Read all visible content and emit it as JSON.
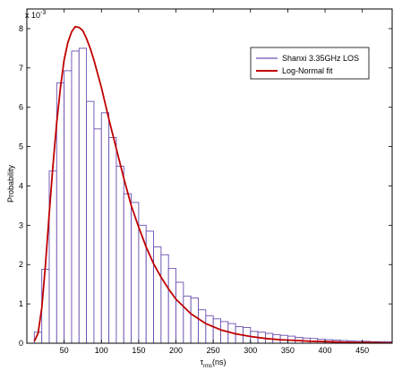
{
  "chart_data": {
    "type": "bar",
    "title": "",
    "xlabel": "τ_rms(ns)",
    "xlabel_main": "τ",
    "xlabel_sub": "rms",
    "xlabel_suffix": "(ns)",
    "ylabel": "Probability",
    "y_exponent_label": "x 10",
    "y_exponent_power": "-3",
    "xlim": [
      0,
      490
    ],
    "ylim": [
      0,
      8.5
    ],
    "x_ticks": [
      50,
      100,
      150,
      200,
      250,
      300,
      350,
      400,
      450
    ],
    "y_ticks": [
      0,
      1,
      2,
      3,
      4,
      5,
      6,
      7,
      8
    ],
    "grid": false,
    "legend_position": "top-right",
    "bar_width": 10,
    "series": [
      {
        "name": "Shanxi 3.35GHz LOS",
        "type": "histogram",
        "color": "#6a4fb0",
        "bin_left_edges": [
          10,
          20,
          30,
          40,
          50,
          60,
          70,
          80,
          90,
          100,
          110,
          120,
          130,
          140,
          150,
          160,
          170,
          180,
          190,
          200,
          210,
          220,
          230,
          240,
          250,
          260,
          270,
          280,
          290,
          300,
          310,
          320,
          330,
          340,
          350,
          360,
          370,
          380,
          390,
          400,
          410,
          420,
          430,
          440,
          450,
          460,
          470,
          480
        ],
        "values": [
          0.28,
          1.88,
          4.38,
          6.62,
          6.93,
          7.43,
          7.5,
          6.15,
          5.45,
          5.86,
          5.23,
          4.5,
          3.8,
          3.58,
          3.0,
          2.85,
          2.45,
          2.25,
          1.9,
          1.55,
          1.2,
          1.15,
          0.85,
          0.7,
          0.62,
          0.55,
          0.5,
          0.42,
          0.4,
          0.3,
          0.28,
          0.25,
          0.22,
          0.2,
          0.18,
          0.15,
          0.13,
          0.12,
          0.1,
          0.09,
          0.08,
          0.07,
          0.06,
          0.05,
          0.05,
          0.04,
          0.04,
          0.04
        ]
      },
      {
        "name": "Log-Normal fit",
        "type": "line",
        "color": "#c00000",
        "x": [
          10,
          15,
          20,
          25,
          30,
          35,
          40,
          45,
          50,
          55,
          60,
          65,
          70,
          75,
          80,
          85,
          90,
          100,
          110,
          120,
          130,
          140,
          150,
          160,
          170,
          180,
          190,
          200,
          220,
          240,
          260,
          280,
          300,
          320,
          340,
          360,
          380,
          400,
          420,
          440,
          460,
          480,
          490
        ],
        "values": [
          0.05,
          0.25,
          0.9,
          2.0,
          3.3,
          4.5,
          5.6,
          6.5,
          7.2,
          7.65,
          7.92,
          8.05,
          8.03,
          7.95,
          7.75,
          7.5,
          7.2,
          6.5,
          5.7,
          4.95,
          4.2,
          3.5,
          2.95,
          2.45,
          2.02,
          1.68,
          1.38,
          1.12,
          0.75,
          0.5,
          0.34,
          0.24,
          0.17,
          0.12,
          0.09,
          0.07,
          0.05,
          0.04,
          0.03,
          0.02,
          0.02,
          0.01,
          0.01
        ]
      }
    ]
  }
}
